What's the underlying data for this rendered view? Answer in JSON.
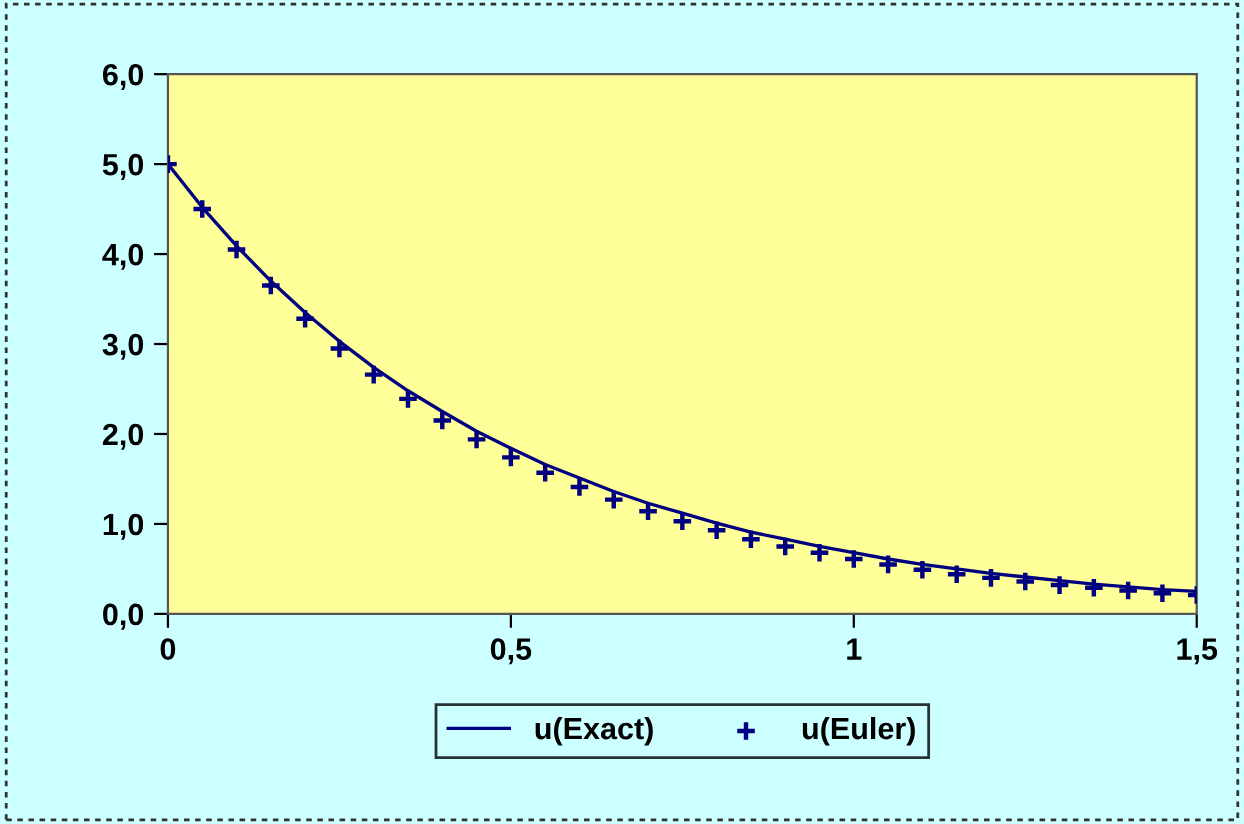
{
  "chart_data": {
    "type": "line",
    "x": [
      0,
      0.05,
      0.1,
      0.15,
      0.2,
      0.25,
      0.3,
      0.35,
      0.4,
      0.45,
      0.5,
      0.55,
      0.6,
      0.65,
      0.7,
      0.75,
      0.8,
      0.85,
      0.9,
      0.95,
      1,
      1.05,
      1.1,
      1.15,
      1.2,
      1.25,
      1.3,
      1.35,
      1.4,
      1.45,
      1.5
    ],
    "series": [
      {
        "name": "u(Exact)",
        "color": "#000080",
        "marker": "none",
        "values": [
          5,
          4.52,
          4.09,
          3.7,
          3.35,
          3.03,
          2.74,
          2.48,
          2.25,
          2.03,
          1.84,
          1.66,
          1.51,
          1.36,
          1.23,
          1.12,
          1.01,
          0.91,
          0.83,
          0.75,
          0.68,
          0.61,
          0.55,
          0.5,
          0.45,
          0.41,
          0.37,
          0.33,
          0.3,
          0.27,
          0.25
        ]
      },
      {
        "name": "u(Euler)",
        "type": "scatter",
        "color": "#000080",
        "marker": "cross",
        "values": [
          5,
          4.5,
          4.05,
          3.65,
          3.28,
          2.95,
          2.66,
          2.39,
          2.15,
          1.94,
          1.74,
          1.57,
          1.41,
          1.27,
          1.14,
          1.03,
          0.93,
          0.83,
          0.75,
          0.68,
          0.61,
          0.55,
          0.49,
          0.44,
          0.4,
          0.36,
          0.32,
          0.29,
          0.26,
          0.23,
          0.21
        ]
      }
    ],
    "xlim": [
      0,
      1.5
    ],
    "xticks": [
      0,
      {
        "value": 0.5,
        "label": "0,5"
      },
      1,
      {
        "value": 1.5,
        "label": "1,5"
      }
    ],
    "ylim": [
      0,
      6
    ],
    "yticks": [
      {
        "value": 0,
        "label": "0,0"
      },
      {
        "value": 1,
        "label": "1,0"
      },
      {
        "value": 2,
        "label": "2,0"
      },
      {
        "value": 3,
        "label": "3,0"
      },
      {
        "value": 4,
        "label": "4,0"
      },
      {
        "value": 5,
        "label": "5,0"
      },
      {
        "value": 6,
        "label": "6,0"
      }
    ],
    "grid": false,
    "legend": "bottom"
  }
}
